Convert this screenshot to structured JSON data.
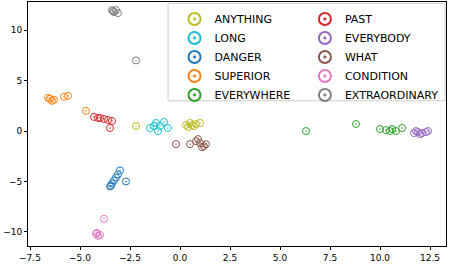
{
  "chart_data": {
    "type": "scatter",
    "marker": "circle-open-dot",
    "legend": "upper right",
    "grid": false,
    "xlim": [
      -7.6,
      13.3
    ],
    "ylim": [
      -11.4,
      12.8
    ],
    "xticks": [
      {
        "value": -7.5,
        "label": "−7.5"
      },
      {
        "value": -5,
        "label": "−5.0"
      },
      {
        "value": -2.5,
        "label": "−2.5"
      },
      {
        "value": 0,
        "label": "0.0"
      },
      {
        "value": 2.5,
        "label": "2.5"
      },
      {
        "value": 5,
        "label": "5.0"
      },
      {
        "value": 7.5,
        "label": "7.5"
      },
      {
        "value": 10,
        "label": "10.0"
      },
      {
        "value": 12.5,
        "label": "12.5"
      }
    ],
    "yticks": [
      {
        "value": -10,
        "label": "−10"
      },
      {
        "value": -5,
        "label": "−5"
      },
      0,
      5,
      10
    ],
    "series": [
      {
        "name": "ANYTHING",
        "color": "#bcbd22",
        "x": [
          -2.2,
          0.3,
          0.5,
          0.7,
          0.8,
          1.0,
          0.6,
          0.4
        ],
        "values": [
          0.5,
          0.6,
          0.8,
          0.5,
          0.7,
          0.8,
          0.6,
          0.4
        ]
      },
      {
        "name": "LONG",
        "color": "#17becf",
        "x": [
          -1.5,
          -1.2,
          -1.0,
          -0.8,
          -1.1,
          -0.6,
          -1.3
        ],
        "values": [
          0.3,
          0.8,
          0.5,
          0.9,
          0.0,
          0.3,
          0.5
        ]
      },
      {
        "name": "DANGER",
        "color": "#1f77b4",
        "x": [
          -3.5,
          -3.4,
          -3.3,
          -3.2,
          -3.1,
          -3.0,
          -3.45,
          -2.7
        ],
        "values": [
          -5.5,
          -5.2,
          -4.9,
          -4.6,
          -4.3,
          -3.9,
          -5.4,
          -5.0
        ]
      },
      {
        "name": "SUPERIOR",
        "color": "#ff7f0e",
        "x": [
          -6.6,
          -6.4,
          -6.5,
          -5.8,
          -5.6,
          -4.7,
          -6.3
        ],
        "values": [
          3.3,
          3.0,
          3.2,
          3.4,
          3.5,
          2.0,
          3.1
        ]
      },
      {
        "name": "EVERYWHERE",
        "color": "#2ca02c",
        "x": [
          6.3,
          8.8,
          10.0,
          10.3,
          10.6,
          10.8,
          11.1,
          10.5
        ],
        "values": [
          0.0,
          0.7,
          0.2,
          0.1,
          0.2,
          0.0,
          0.3,
          0.0
        ]
      },
      {
        "name": "PAST",
        "color": "#d62728",
        "x": [
          -4.3,
          -4.0,
          -3.8,
          -3.6,
          -3.4,
          -3.5,
          -4.1
        ],
        "values": [
          1.4,
          1.3,
          1.2,
          1.1,
          1.0,
          0.3,
          1.3
        ]
      },
      {
        "name": "EVERYBODY",
        "color": "#9467bd",
        "x": [
          11.7,
          11.9,
          12.1,
          12.3,
          12.4,
          12.0,
          11.8
        ],
        "values": [
          -0.2,
          -0.1,
          -0.2,
          -0.1,
          0.0,
          -0.3,
          0.0
        ]
      },
      {
        "name": "WHAT",
        "color": "#8c564b",
        "x": [
          -0.2,
          0.5,
          0.8,
          1.0,
          1.2,
          1.3,
          1.1,
          0.9
        ],
        "values": [
          -1.3,
          -1.3,
          -1.0,
          -1.2,
          -1.5,
          -1.3,
          -1.6,
          -0.8
        ]
      },
      {
        "name": "CONDITION",
        "color": "#e377c2",
        "x": [
          -3.8,
          -4.2,
          -4.1,
          -4.0,
          -4.15
        ],
        "values": [
          -8.7,
          -10.2,
          -10.4,
          -10.3,
          -10.1
        ]
      },
      {
        "name": "EXTRAORDINARY",
        "color": "#7f7f7f",
        "x": [
          -3.4,
          -3.3,
          -3.2,
          -3.1,
          -2.2,
          -3.35
        ],
        "values": [
          12.0,
          11.8,
          12.0,
          11.7,
          7.0,
          11.9
        ]
      }
    ]
  }
}
